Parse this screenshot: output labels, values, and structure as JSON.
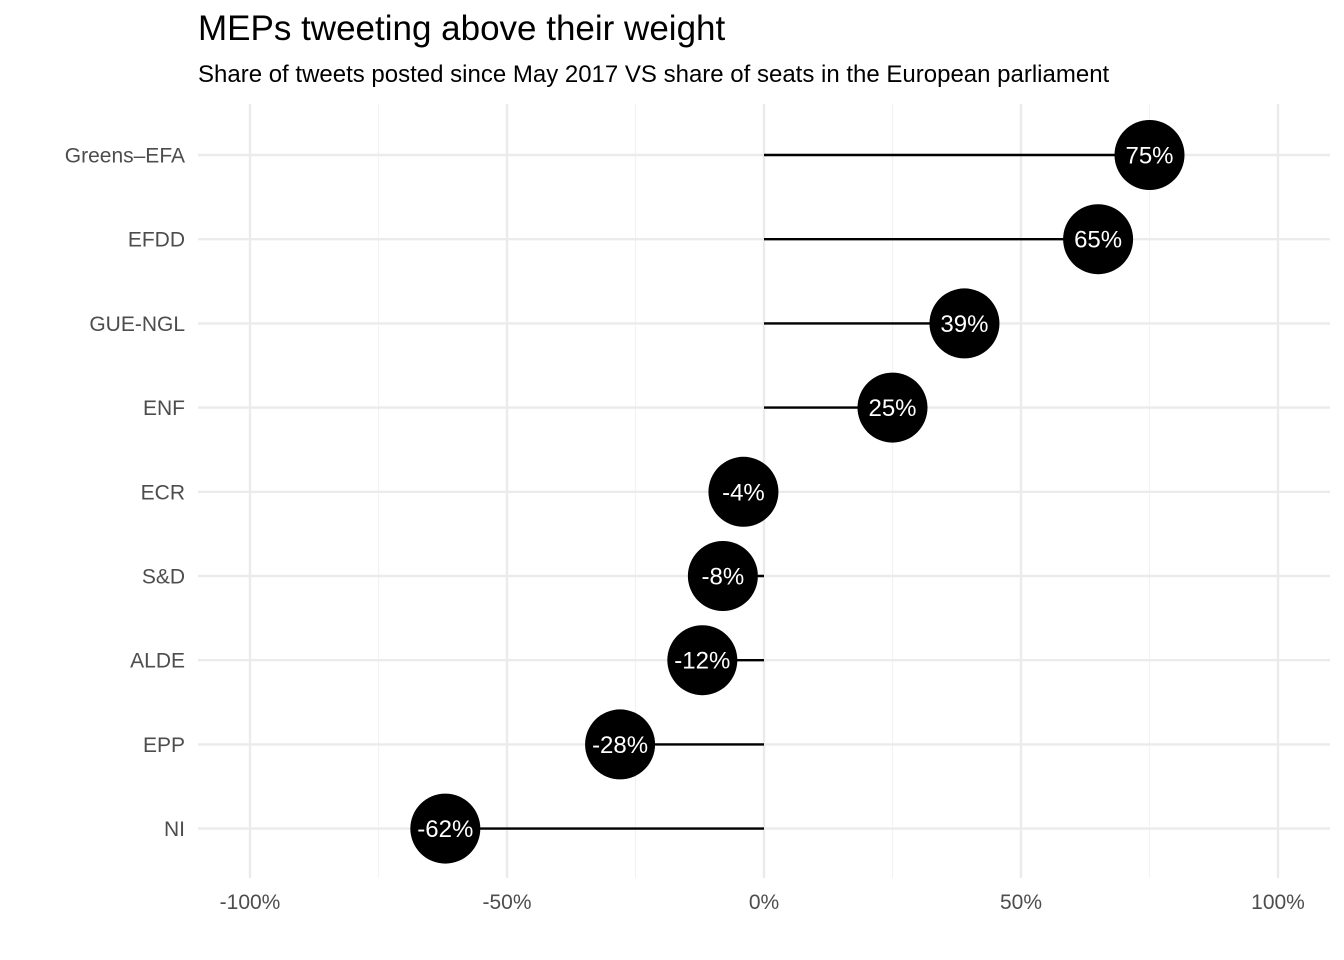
{
  "chart_data": {
    "type": "lollipop",
    "title": "MEPs tweeting above their weight",
    "subtitle": "Share of tweets posted since May 2017 VS share of seats in the European parliament",
    "xlabel": "",
    "ylabel": "",
    "xlim": [
      -100,
      100
    ],
    "x_ticks": [
      -100,
      -50,
      0,
      50,
      100
    ],
    "x_tick_labels": [
      "-100%",
      "-50%",
      "0%",
      "50%",
      "100%"
    ],
    "grid": true,
    "legend": "none",
    "categories": [
      "Greens–EFA",
      "EFDD",
      "GUE-NGL",
      "ENF",
      "ECR",
      "S&D",
      "ALDE",
      "EPP",
      "NI"
    ],
    "values": [
      75,
      65,
      39,
      25,
      -4,
      -8,
      -12,
      -28,
      -62
    ],
    "value_labels": [
      "75%",
      "65%",
      "39%",
      "25%",
      "-4%",
      "-8%",
      "-12%",
      "-28%",
      "-62%"
    ],
    "colors": {
      "point": "#000000",
      "segment": "#000000",
      "point_text": "#ffffff",
      "grid_major": "#ebebeb",
      "grid_minor": "#f2f2f2",
      "axis_text": "#4d4d4d"
    }
  }
}
